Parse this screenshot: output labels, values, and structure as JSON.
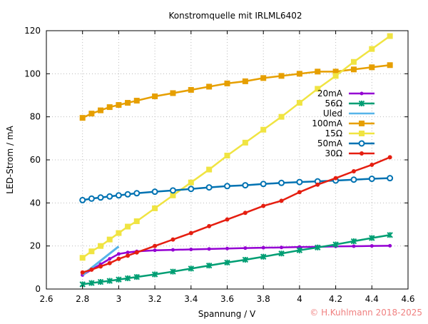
{
  "chart_data": {
    "type": "line",
    "title": "Konstromquelle mit IRLML6402",
    "xlabel": "Spannung / V",
    "ylabel": "LED-Strom / mA",
    "xlim": [
      2.6,
      4.6
    ],
    "ylim": [
      0,
      120
    ],
    "xticks": [
      "2.6",
      "2.8",
      "3",
      "3.2",
      "3.4",
      "3.6",
      "3.8",
      "4",
      "4.2",
      "4.4",
      "4.6"
    ],
    "yticks": [
      "0",
      "20",
      "40",
      "60",
      "80",
      "100",
      "120"
    ],
    "grid": true,
    "legend_position": "right",
    "x": [
      2.8,
      2.85,
      2.9,
      2.95,
      3.0,
      3.05,
      3.1,
      3.2,
      3.3,
      3.4,
      3.5,
      3.6,
      3.7,
      3.8,
      3.9,
      4.0,
      4.1,
      4.2,
      4.3,
      4.4,
      4.5
    ],
    "series": [
      {
        "name": "20mA",
        "color": "#9400d3",
        "marker": "dot",
        "values": [
          6.5,
          9,
          11.5,
          14,
          16.3,
          17,
          17.5,
          18,
          18.2,
          18.4,
          18.6,
          18.8,
          19,
          19.2,
          19.3,
          19.5,
          19.6,
          19.8,
          19.9,
          20,
          20.1
        ]
      },
      {
        "name": "56Ω",
        "color": "#009e73",
        "marker": "asterisk",
        "values": [
          2.2,
          2.8,
          3.3,
          3.8,
          4.4,
          5,
          5.6,
          6.8,
          8.1,
          9.5,
          10.9,
          12.3,
          13.6,
          15,
          16.5,
          18,
          19.3,
          20.7,
          22.2,
          23.7,
          25.1
        ]
      },
      {
        "name": "Uled",
        "color": "#56b4e9",
        "marker": "none",
        "x": [
          2.8,
          3.0
        ],
        "values": [
          6.5,
          19.8
        ]
      },
      {
        "name": "100mA",
        "color": "#e69f00",
        "marker": "square",
        "values": [
          79.5,
          81.5,
          83,
          84.5,
          85.5,
          86.5,
          87.5,
          89.5,
          91,
          92.5,
          94,
          95.5,
          96.5,
          98,
          99,
          100,
          101,
          101,
          102,
          103,
          104
        ]
      },
      {
        "name": "15Ω",
        "color": "#f0e442",
        "marker": "square",
        "values": [
          14.5,
          17.5,
          20,
          23,
          26,
          29,
          31.5,
          37.5,
          43.5,
          49.5,
          55.5,
          62,
          68,
          74,
          80,
          86.5,
          93,
          99,
          105.5,
          111.5,
          117.5
        ]
      },
      {
        "name": "50mA",
        "color": "#0072b2",
        "marker": "open-circle",
        "values": [
          41.3,
          42,
          42.5,
          43,
          43.5,
          44,
          44.5,
          45.2,
          45.8,
          46.5,
          47.2,
          47.8,
          48.2,
          48.8,
          49.3,
          49.7,
          50,
          50.4,
          50.8,
          51.2,
          51.5
        ]
      },
      {
        "name": "30Ω",
        "color": "#e51e10",
        "marker": "circle",
        "values": [
          7.7,
          9,
          10.5,
          12,
          14,
          15.5,
          17,
          20,
          23,
          26,
          29.2,
          32.3,
          35.4,
          38.6,
          41,
          45,
          48.5,
          51.5,
          54.7,
          57.7,
          61.2
        ]
      }
    ]
  },
  "copyright": "© H.Kuhlmann 2018-2025"
}
